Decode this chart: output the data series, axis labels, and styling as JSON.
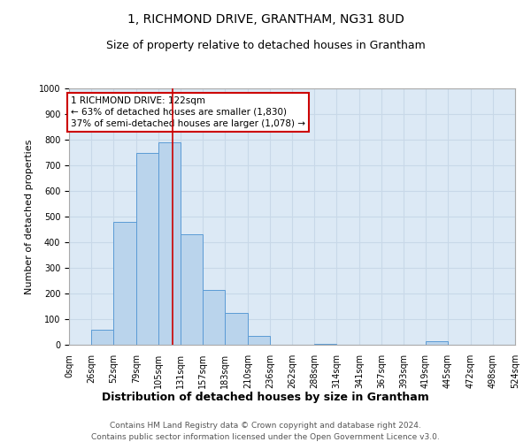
{
  "title": "1, RICHMOND DRIVE, GRANTHAM, NG31 8UD",
  "subtitle": "Size of property relative to detached houses in Grantham",
  "xlabel": "Distribution of detached houses by size in Grantham",
  "ylabel": "Number of detached properties",
  "footnote1": "Contains HM Land Registry data © Crown copyright and database right 2024.",
  "footnote2": "Contains public sector information licensed under the Open Government Licence v3.0.",
  "annotation_line1": "1 RICHMOND DRIVE: 122sqm",
  "annotation_line2": "← 63% of detached houses are smaller (1,830)",
  "annotation_line3": "37% of semi-detached houses are larger (1,078) →",
  "property_size": 122,
  "bin_edges": [
    0,
    26,
    52,
    79,
    105,
    131,
    157,
    183,
    210,
    236,
    262,
    288,
    314,
    341,
    367,
    393,
    419,
    445,
    472,
    498,
    524
  ],
  "bar_heights": [
    0,
    60,
    480,
    750,
    790,
    430,
    215,
    125,
    35,
    0,
    0,
    5,
    0,
    0,
    0,
    0,
    15,
    0,
    0,
    0
  ],
  "bar_color": "#bad4ec",
  "bar_edge_color": "#5b9bd5",
  "vline_color": "#cc0000",
  "annotation_box_color": "#cc0000",
  "background_color": "#ffffff",
  "grid_color": "#c8d8e8",
  "axes_bg_color": "#dce9f5",
  "ylim": [
    0,
    1000
  ],
  "yticks": [
    0,
    100,
    200,
    300,
    400,
    500,
    600,
    700,
    800,
    900,
    1000
  ],
  "title_fontsize": 10,
  "subtitle_fontsize": 9,
  "ylabel_fontsize": 8,
  "xlabel_fontsize": 9,
  "tick_fontsize": 7,
  "annotation_fontsize": 7.5,
  "footnote_fontsize": 6.5
}
